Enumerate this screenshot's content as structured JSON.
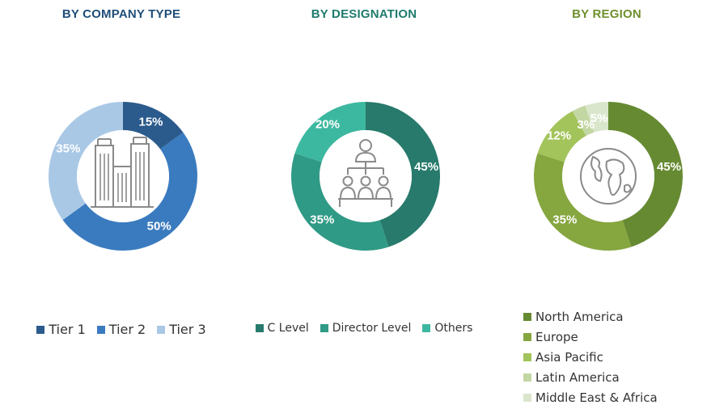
{
  "chart_data": [
    {
      "type": "pie",
      "title": "BY COMPANY TYPE",
      "title_color": "#1f4e79",
      "categories": [
        "Tier 1",
        "Tier 2",
        "Tier 3"
      ],
      "values": [
        15,
        50,
        35
      ],
      "labels": [
        "15%",
        "50%",
        "35%"
      ],
      "colors": [
        "#2b5b8c",
        "#3a7bbf",
        "#a9c8e6"
      ],
      "center_icon": "buildings-icon",
      "legend_position": "bottom"
    },
    {
      "type": "pie",
      "title": "BY DESIGNATION",
      "title_color": "#1e7b6c",
      "categories": [
        "C Level",
        "Director Level",
        "Others"
      ],
      "values": [
        45,
        35,
        20
      ],
      "labels": [
        "45%",
        "35%",
        "20%"
      ],
      "colors": [
        "#277a6c",
        "#2f9a85",
        "#3db8a0"
      ],
      "center_icon": "org-hierarchy-icon",
      "legend_position": "bottom"
    },
    {
      "type": "pie",
      "title": "BY REGION",
      "title_color": "#6f8f2e",
      "categories": [
        "North America",
        "Europe",
        "Asia Pacific",
        "Latin America",
        "Middle East & Africa"
      ],
      "values": [
        45,
        35,
        12,
        3,
        5
      ],
      "labels": [
        "45%",
        "35%",
        "12%",
        "3%",
        "5%"
      ],
      "colors": [
        "#668a32",
        "#86a63f",
        "#a3c45b",
        "#c3d7a3",
        "#dae6cc"
      ],
      "center_icon": "globe-icon",
      "legend_position": "bottom"
    }
  ]
}
